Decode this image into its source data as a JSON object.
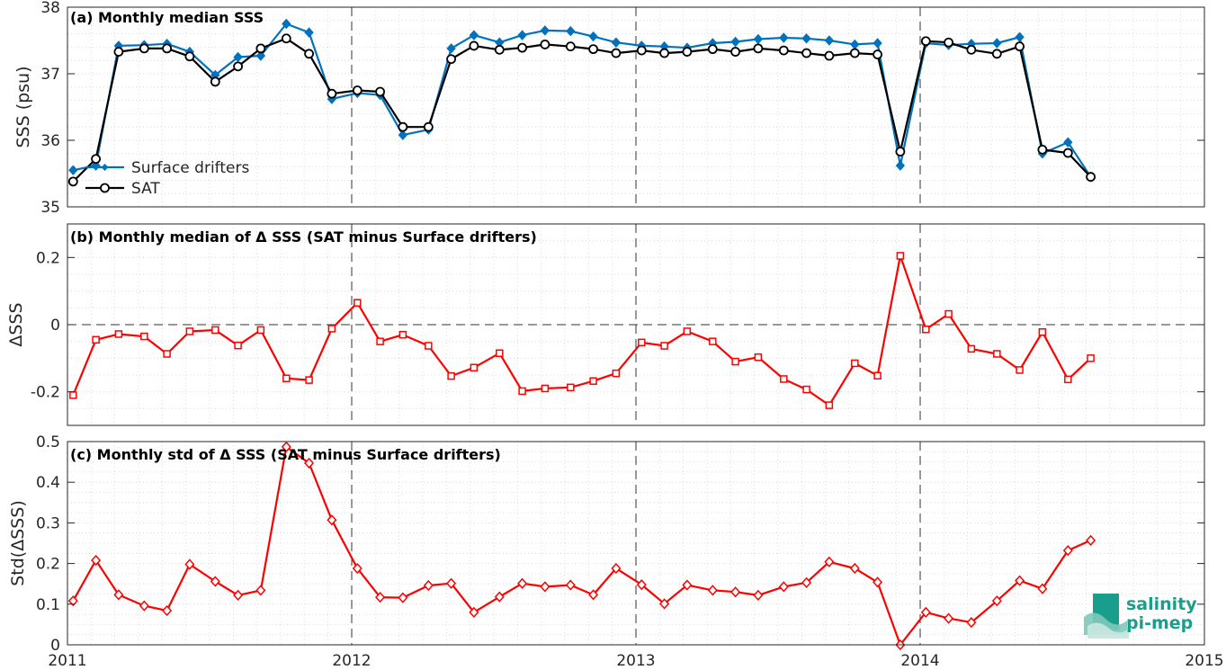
{
  "chart_data": [
    {
      "type": "line",
      "title": "(a) Monthly median SSS",
      "ylabel": "SSS (psu)",
      "xlim": [
        2011,
        2015
      ],
      "ylim": [
        35,
        38
      ],
      "yticks": [
        "35",
        "36",
        "37",
        "38"
      ],
      "legend": {
        "placement": "bottom-left"
      },
      "grid": true,
      "series": [
        {
          "name": "Surface drifters",
          "color": "#0072BD",
          "marker": "diamond",
          "x": [
            2011.02,
            2011.1,
            2011.18,
            2011.27,
            2011.35,
            2011.43,
            2011.52,
            2011.6,
            2011.68,
            2011.77,
            2011.85,
            2011.93,
            2012.02,
            2012.1,
            2012.18,
            2012.27,
            2012.35,
            2012.43,
            2012.52,
            2012.6,
            2012.68,
            2012.77,
            2012.85,
            2012.93,
            2013.02,
            2013.1,
            2013.18,
            2013.27,
            2013.35,
            2013.43,
            2013.52,
            2013.6,
            2013.68,
            2013.77,
            2013.85,
            2013.93,
            2014.02,
            2014.1,
            2014.18,
            2014.27,
            2014.35,
            2014.43,
            2014.52,
            2014.6
          ],
          "values": [
            35.55,
            35.62,
            37.42,
            37.43,
            37.45,
            37.33,
            36.98,
            37.25,
            37.27,
            37.75,
            37.62,
            36.62,
            36.71,
            36.68,
            36.08,
            36.16,
            37.38,
            37.58,
            37.47,
            37.58,
            37.65,
            37.64,
            37.56,
            37.47,
            37.42,
            37.41,
            37.39,
            37.46,
            37.48,
            37.52,
            37.54,
            37.53,
            37.5,
            37.44,
            37.46,
            35.62,
            37.46,
            37.43,
            37.45,
            37.46,
            37.55,
            35.8,
            35.97,
            35.45
          ]
        },
        {
          "name": "SAT",
          "color": "#000000",
          "marker": "circle",
          "x": [
            2011.02,
            2011.1,
            2011.18,
            2011.27,
            2011.35,
            2011.43,
            2011.52,
            2011.6,
            2011.68,
            2011.77,
            2011.85,
            2011.93,
            2012.02,
            2012.1,
            2012.18,
            2012.27,
            2012.35,
            2012.43,
            2012.52,
            2012.6,
            2012.68,
            2012.77,
            2012.85,
            2012.93,
            2013.02,
            2013.1,
            2013.18,
            2013.27,
            2013.35,
            2013.43,
            2013.52,
            2013.6,
            2013.68,
            2013.77,
            2013.85,
            2013.93,
            2014.02,
            2014.1,
            2014.18,
            2014.27,
            2014.35,
            2014.43,
            2014.52,
            2014.6
          ],
          "values": [
            35.38,
            35.72,
            37.33,
            37.38,
            37.38,
            37.26,
            36.88,
            37.11,
            37.38,
            37.53,
            37.3,
            36.7,
            36.75,
            36.73,
            36.2,
            36.2,
            37.22,
            37.42,
            37.36,
            37.39,
            37.44,
            37.41,
            37.37,
            37.31,
            37.35,
            37.31,
            37.33,
            37.37,
            37.33,
            37.38,
            37.35,
            37.31,
            37.27,
            37.31,
            37.29,
            35.83,
            37.49,
            37.47,
            37.36,
            37.3,
            37.41,
            35.86,
            35.81,
            35.45
          ]
        }
      ]
    },
    {
      "type": "line",
      "title": "(b) Monthly median of Δ SSS (SAT minus Surface drifters)",
      "ylabel": "ΔSSS",
      "xlim": [
        2011,
        2015
      ],
      "ylim": [
        -0.3,
        0.3
      ],
      "yticks": [
        "-0.2",
        "0",
        "0.2"
      ],
      "grid": true,
      "series": [
        {
          "color": "#FF0000",
          "marker": "square",
          "x": [
            2011.02,
            2011.1,
            2011.18,
            2011.27,
            2011.35,
            2011.43,
            2011.52,
            2011.6,
            2011.68,
            2011.77,
            2011.85,
            2011.93,
            2012.02,
            2012.1,
            2012.18,
            2012.27,
            2012.35,
            2012.43,
            2012.52,
            2012.6,
            2012.68,
            2012.77,
            2012.85,
            2012.93,
            2013.02,
            2013.1,
            2013.18,
            2013.27,
            2013.35,
            2013.43,
            2013.52,
            2013.6,
            2013.68,
            2013.77,
            2013.85,
            2013.93,
            2014.02,
            2014.1,
            2014.18,
            2014.27,
            2014.35,
            2014.43,
            2014.52,
            2014.6
          ],
          "values": [
            -0.21,
            -0.045,
            -0.028,
            -0.035,
            -0.087,
            -0.02,
            -0.016,
            -0.062,
            -0.016,
            -0.16,
            -0.165,
            -0.012,
            0.065,
            -0.05,
            -0.03,
            -0.063,
            -0.153,
            -0.128,
            -0.085,
            -0.198,
            -0.19,
            -0.187,
            -0.168,
            -0.145,
            -0.053,
            -0.063,
            -0.02,
            -0.05,
            -0.11,
            -0.097,
            -0.162,
            -0.193,
            -0.24,
            -0.115,
            -0.152,
            0.205,
            -0.014,
            0.032,
            -0.072,
            -0.087,
            -0.135,
            -0.022,
            -0.163,
            -0.1
          ]
        }
      ]
    },
    {
      "type": "line",
      "title": "(c) Monthly std of Δ SSS (SAT minus Surface drifters)",
      "ylabel": "Std(ΔSSS)",
      "xlim": [
        2011,
        2015
      ],
      "ylim": [
        0,
        0.5
      ],
      "yticks": [
        "0",
        "0.1",
        "0.2",
        "0.3",
        "0.4",
        "0.5"
      ],
      "xticks": [
        "2011",
        "2012",
        "2013",
        "2014",
        "2015"
      ],
      "grid": true,
      "series": [
        {
          "color": "#FF0000",
          "marker": "diamond",
          "x": [
            2011.02,
            2011.1,
            2011.18,
            2011.27,
            2011.35,
            2011.43,
            2011.52,
            2011.6,
            2011.68,
            2011.77,
            2011.85,
            2011.93,
            2012.02,
            2012.1,
            2012.18,
            2012.27,
            2012.35,
            2012.43,
            2012.52,
            2012.6,
            2012.68,
            2012.77,
            2012.85,
            2012.93,
            2013.02,
            2013.1,
            2013.18,
            2013.27,
            2013.35,
            2013.43,
            2013.52,
            2013.6,
            2013.68,
            2013.77,
            2013.85,
            2013.93,
            2014.02,
            2014.1,
            2014.18,
            2014.27,
            2014.35,
            2014.43,
            2014.52,
            2014.6
          ],
          "values": [
            0.108,
            0.208,
            0.123,
            0.096,
            0.084,
            0.198,
            0.156,
            0.122,
            0.134,
            0.487,
            0.447,
            0.307,
            0.188,
            0.117,
            0.116,
            0.146,
            0.151,
            0.08,
            0.118,
            0.151,
            0.143,
            0.147,
            0.123,
            0.188,
            0.148,
            0.101,
            0.147,
            0.134,
            0.13,
            0.122,
            0.143,
            0.153,
            0.204,
            0.188,
            0.154,
            0.0,
            0.08,
            0.065,
            0.055,
            0.108,
            0.158,
            0.138,
            0.232,
            0.257
          ]
        }
      ]
    }
  ],
  "logo": {
    "line1": "salinity",
    "line2": "pi-mep",
    "color": "#1a9e8c"
  }
}
